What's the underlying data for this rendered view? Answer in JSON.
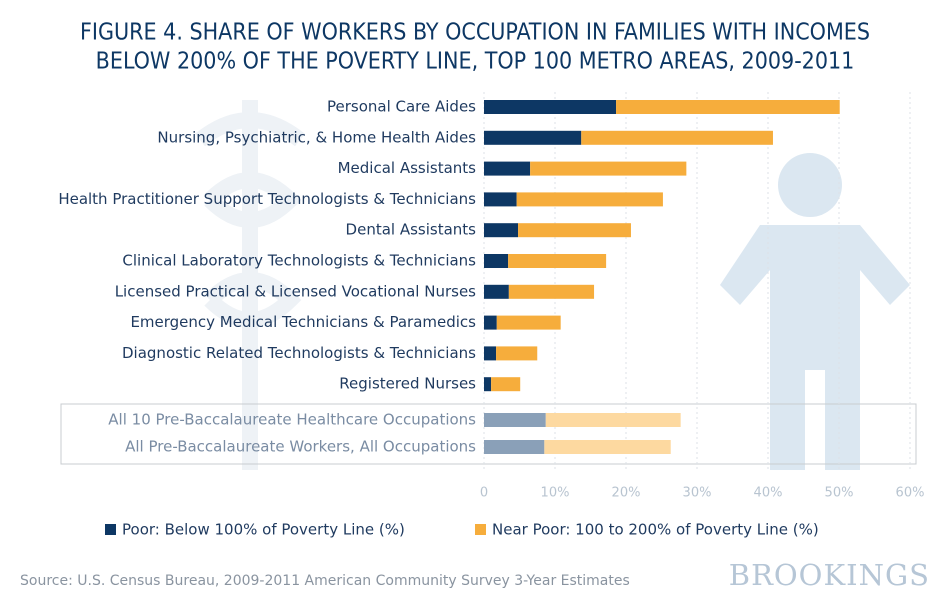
{
  "chart_data": {
    "type": "stacked-barh",
    "title": [
      "FIGURE 4. SHARE OF WORKERS BY OCCUPATION IN FAMILIES WITH INCOMES",
      "BELOW 200% OF THE POVERTY LINE, TOP 100 METRO AREAS, 2009-2011"
    ],
    "categories": [
      "Personal Care Aides",
      "Nursing, Psychiatric, & Home Health Aides",
      "Medical Assistants",
      "Health Practitioner Support Technologists & Technicians",
      "Dental Assistants",
      "Clinical Laboratory Technologists & Technicians",
      "Licensed Practical & Licensed Vocational Nurses",
      "Emergency Medical Technicians & Paramedics",
      "Diagnostic Related Technologists & Technicians",
      "Registered Nurses",
      "All 10 Pre-Baccalaureate Healthcare Occupations",
      "All Pre-Baccalaureate Workers, All Occupations"
    ],
    "series": [
      {
        "name": "Poor: Below 100% of Poverty Line (%)",
        "color": "#0d3764",
        "point_colors": [
          "#0d3764",
          "#0d3764",
          "#0d3764",
          "#0d3764",
          "#0d3764",
          "#0d3764",
          "#0d3764",
          "#0d3764",
          "#0d3764",
          "#0d3764",
          "#8aa0b8",
          "#8aa0b8"
        ],
        "values": [
          18.6,
          13.7,
          6.5,
          4.6,
          4.8,
          3.4,
          3.5,
          1.8,
          1.7,
          1.0,
          8.7,
          8.5
        ]
      },
      {
        "name": "Near Poor: 100 to 200% of Poverty Line (%)",
        "color": "#f6ad3c",
        "point_colors": [
          "#f6ad3c",
          "#f6ad3c",
          "#f6ad3c",
          "#f6ad3c",
          "#f6ad3c",
          "#f6ad3c",
          "#f6ad3c",
          "#f6ad3c",
          "#f6ad3c",
          "#f6ad3c",
          "#fdd9a0",
          "#fdd9a0"
        ],
        "values": [
          31.5,
          27.0,
          22.0,
          20.6,
          15.9,
          13.8,
          12.0,
          9.0,
          5.8,
          4.1,
          19.0,
          17.8
        ]
      }
    ],
    "xlim": [
      0,
      60
    ],
    "xticks": [
      0,
      {
        "value": 10,
        "label": "10%"
      },
      {
        "value": 20,
        "label": "20%"
      },
      {
        "value": 30,
        "label": "30%"
      },
      {
        "value": 40,
        "label": "40%"
      },
      {
        "value": 50,
        "label": "50%"
      },
      {
        "value": 60,
        "label": "60%"
      }
    ],
    "grid": true,
    "legend": "bottom",
    "source": "Source: U.S. Census Bureau, 2009-2011 American Community Survey 3-Year Estimates",
    "brand": "BROOKINGS"
  }
}
